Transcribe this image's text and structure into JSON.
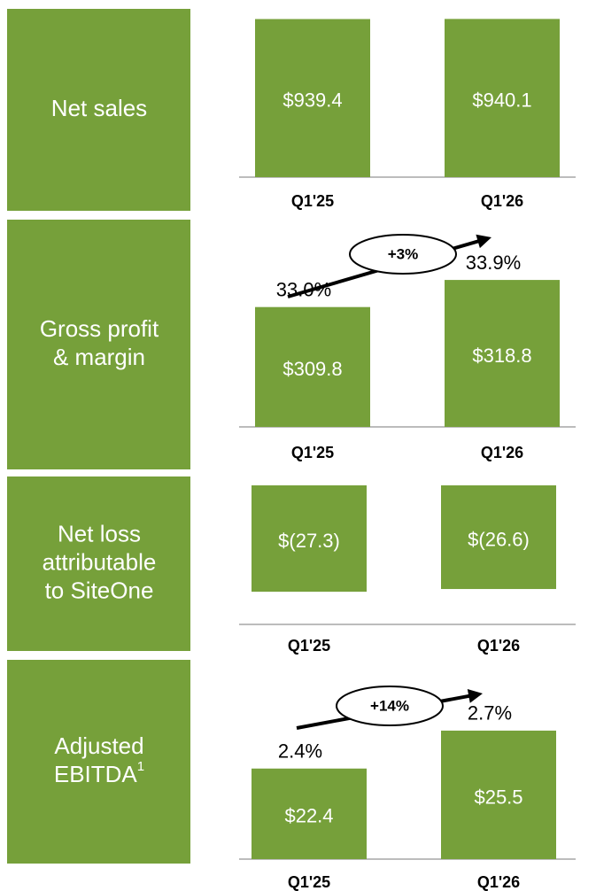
{
  "chart_data": [
    {
      "type": "bar",
      "title": [
        "Net sales"
      ],
      "categories": [
        "Q1'25",
        "Q1'26"
      ],
      "values": [
        939.4,
        940.1
      ],
      "value_labels": [
        "$939.4",
        "$940.1"
      ],
      "color": "#76a03a",
      "ylim": [
        0,
        1000
      ]
    },
    {
      "type": "bar",
      "title": [
        "Gross profit",
        "& margin"
      ],
      "categories": [
        "Q1'25",
        "Q1'26"
      ],
      "values": [
        309.8,
        318.8
      ],
      "value_labels": [
        "$309.8",
        "$318.8"
      ],
      "margin_labels": [
        "33.0%",
        "33.9%"
      ],
      "growth": "+3%",
      "color": "#76a03a",
      "ylim": [
        270,
        320
      ]
    },
    {
      "type": "bar",
      "title": [
        "Net loss",
        "attributable",
        "to SiteOne"
      ],
      "categories": [
        "Q1'25",
        "Q1'26"
      ],
      "values": [
        -27.3,
        -26.6
      ],
      "value_labels": [
        "$(27.3)",
        "$(26.6)"
      ],
      "color": "#76a03a",
      "ylim": [
        -30,
        0
      ]
    },
    {
      "type": "bar",
      "title": [
        "Adjusted",
        "EBITDA"
      ],
      "title_footnote": "1",
      "categories": [
        "Q1'25",
        "Q1'26"
      ],
      "values": [
        22.4,
        25.5
      ],
      "value_labels": [
        "$22.4",
        "$25.5"
      ],
      "margin_labels": [
        "2.4%",
        "2.7%"
      ],
      "growth": "+14%",
      "color": "#76a03a",
      "ylim": [
        15,
        26
      ]
    }
  ]
}
